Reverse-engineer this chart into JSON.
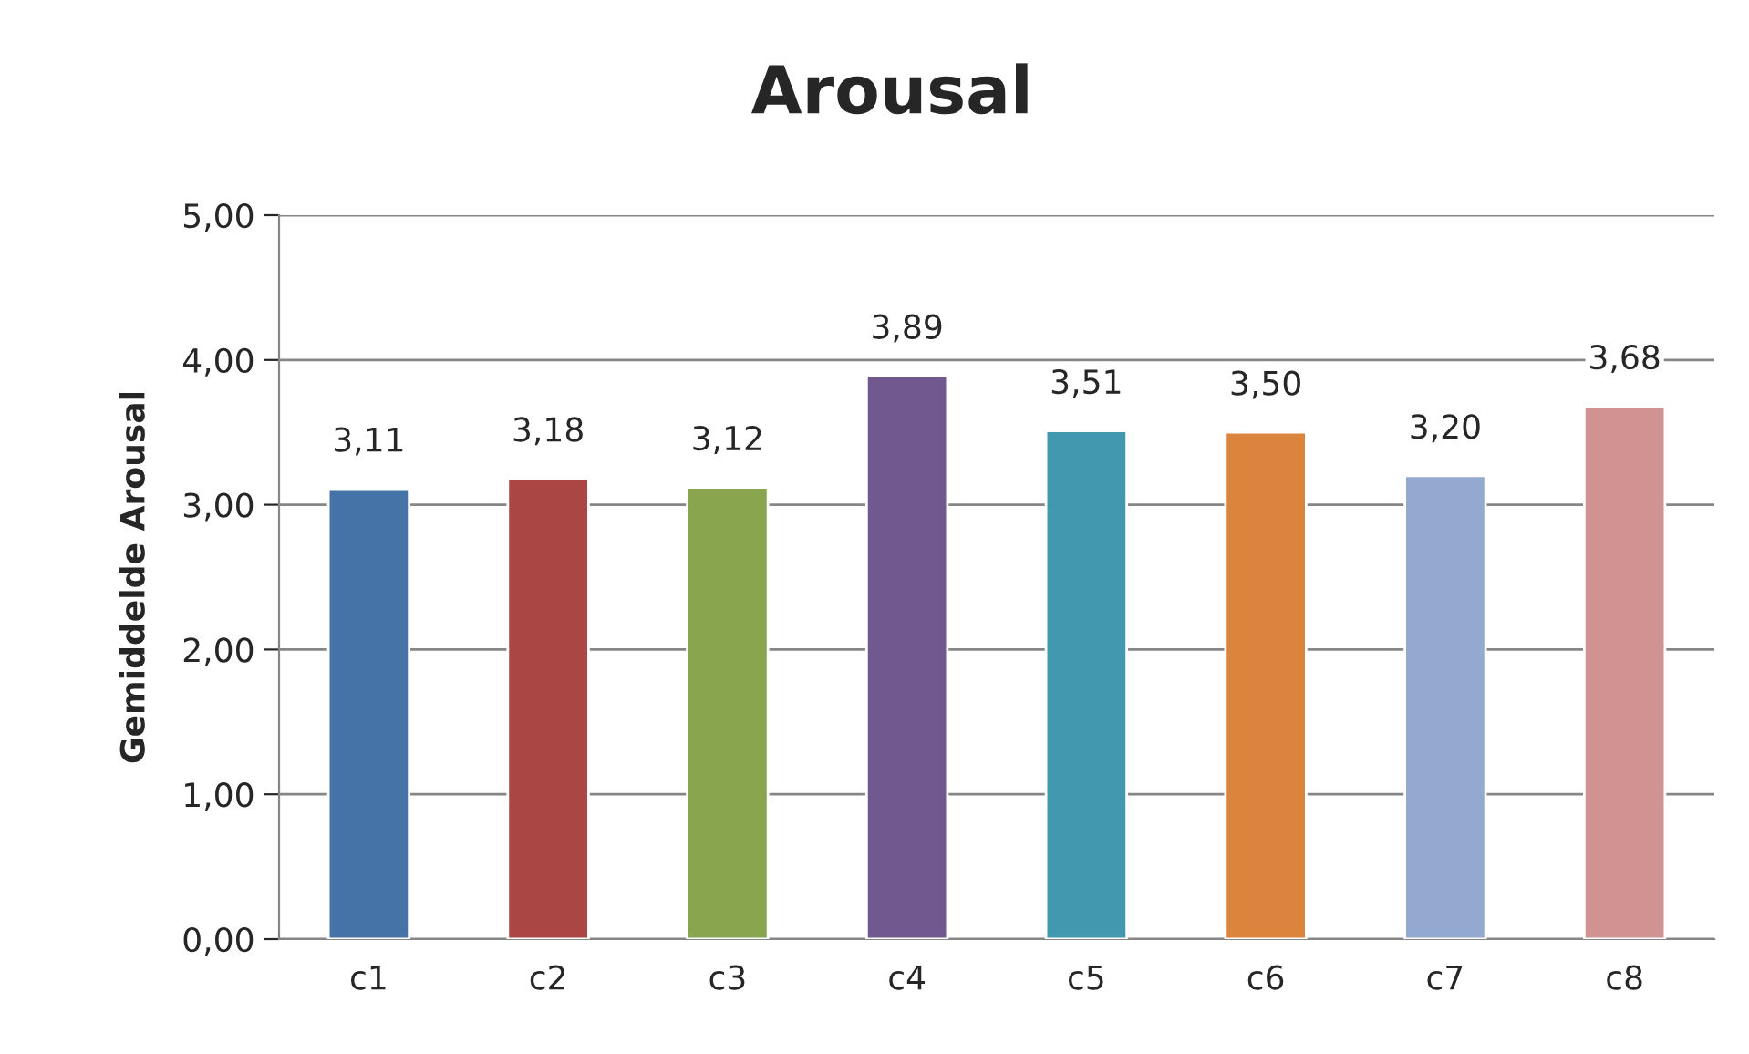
{
  "chart_data": {
    "type": "bar",
    "title": "Arousal",
    "ylabel": "Gemiddelde Arousal",
    "categories": [
      "c1",
      "c2",
      "c3",
      "c4",
      "c5",
      "c6",
      "c7",
      "c8"
    ],
    "values": [
      3.11,
      3.18,
      3.12,
      3.89,
      3.51,
      3.5,
      3.2,
      3.68
    ],
    "value_labels": [
      "3,11",
      "3,18",
      "3,12",
      "3,89",
      "3,51",
      "3,50",
      "3,20",
      "3,68"
    ],
    "colors": [
      "#4572a7",
      "#aa4643",
      "#89a54e",
      "#71588f",
      "#4198af",
      "#db843d",
      "#93a9cf",
      "#d19392"
    ],
    "ylim": [
      0,
      5
    ],
    "yticks": [
      {
        "value": 0,
        "label": "0,00"
      },
      {
        "value": 1,
        "label": "1,00"
      },
      {
        "value": 2,
        "label": "2,00"
      },
      {
        "value": 3,
        "label": "3,00"
      },
      {
        "value": 4,
        "label": "4,00"
      },
      {
        "value": 5,
        "label": "5,00"
      }
    ],
    "grid": "y",
    "legend": false
  }
}
